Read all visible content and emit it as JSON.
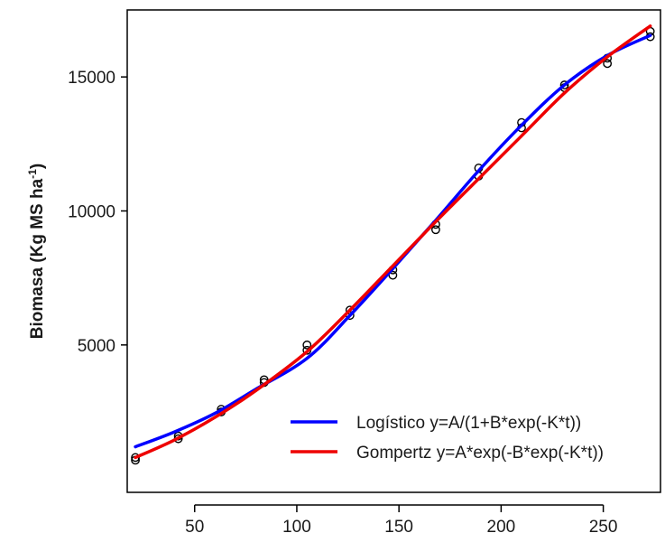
{
  "chart_data": {
    "type": "scatter",
    "title": "",
    "xlabel": "",
    "ylabel": {
      "main": "Biomasa  (Kg MS ha",
      "sup": "-1",
      "close": ")"
    },
    "xlim": [
      17,
      278
    ],
    "ylim": [
      -500,
      17500
    ],
    "xticks": [
      50,
      100,
      150,
      200,
      250
    ],
    "yticks": [
      5000,
      10000,
      15000
    ],
    "grid": false,
    "legend_position": "bottom-right",
    "points": [
      [
        21,
        700
      ],
      [
        21,
        800
      ],
      [
        42,
        1500
      ],
      [
        42,
        1600
      ],
      [
        63,
        2500
      ],
      [
        63,
        2600
      ],
      [
        84,
        3600
      ],
      [
        84,
        3700
      ],
      [
        105,
        4800
      ],
      [
        105,
        5000
      ],
      [
        126,
        6100
      ],
      [
        126,
        6300
      ],
      [
        147,
        7600
      ],
      [
        147,
        7800
      ],
      [
        168,
        9300
      ],
      [
        168,
        9500
      ],
      [
        189,
        11300
      ],
      [
        189,
        11600
      ],
      [
        210,
        13100
      ],
      [
        210,
        13300
      ],
      [
        231,
        14600
      ],
      [
        231,
        14700
      ],
      [
        252,
        15500
      ],
      [
        252,
        15700
      ],
      [
        273,
        16500
      ],
      [
        273,
        16700
      ]
    ],
    "series": [
      {
        "name": "Logístico  y=A/(1+B*exp(-K*t))",
        "color": "#0000ff",
        "x": [
          21,
          40,
          60,
          80,
          105,
          126,
          147,
          168,
          189,
          210,
          231,
          252,
          273
        ],
        "y": [
          1200,
          1750,
          2450,
          3350,
          4500,
          6100,
          7850,
          9650,
          11500,
          13200,
          14700,
          15800,
          16550
        ]
      },
      {
        "name": "Gompertz  y=A*exp(-B*exp(-K*t))",
        "color": "#ee0000",
        "x": [
          21,
          40,
          60,
          80,
          105,
          126,
          147,
          168,
          189,
          210,
          231,
          252,
          273
        ],
        "y": [
          800,
          1450,
          2300,
          3300,
          4750,
          6300,
          7950,
          9600,
          11200,
          12800,
          14400,
          15750,
          16900
        ]
      }
    ]
  }
}
